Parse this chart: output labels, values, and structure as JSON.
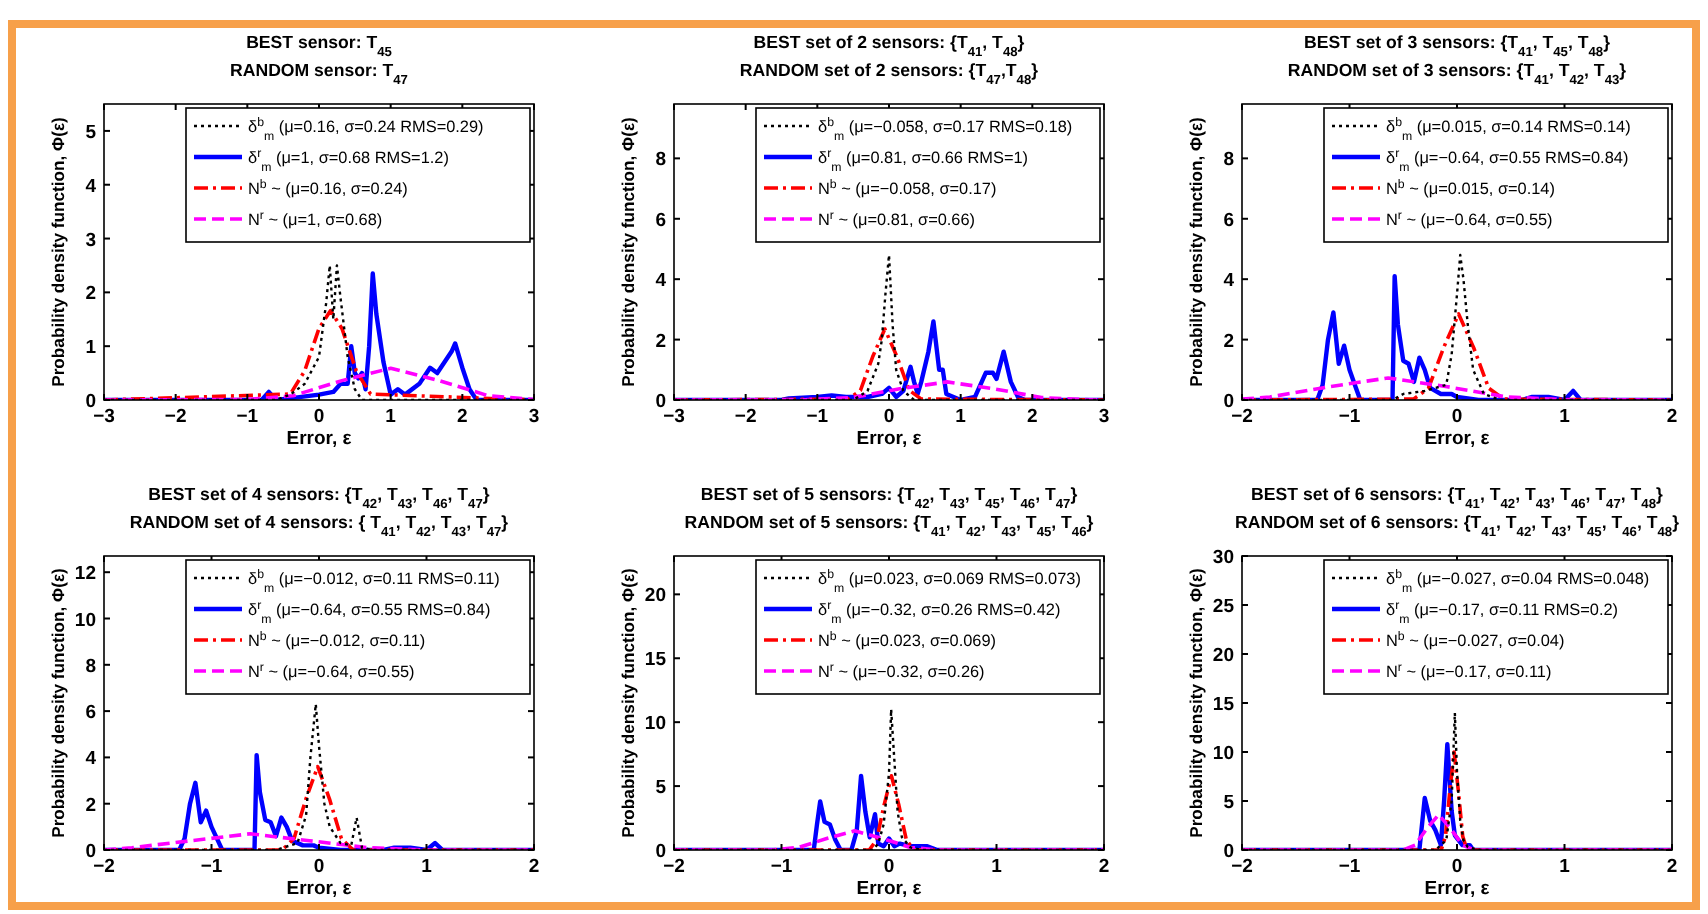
{
  "chart_data": [
    {
      "type": "line",
      "title": "BEST sensor: T$_{45}$",
      "subtitle": "RANDOM sensor: T$_{47}$",
      "xlabel": "Error, ε",
      "ylabel": "Probability density function, Φ(ε)",
      "xlim": [
        -3,
        3
      ],
      "xticks": [
        -3,
        -2,
        -1,
        0,
        1,
        2,
        3
      ],
      "ylim": [
        0,
        5.5
      ],
      "yticks": [
        0,
        1,
        2,
        3,
        4,
        5
      ],
      "legend": "top right",
      "series": [
        {
          "name": "δ$^{b}$$_{m}$ (μ=0.16, σ=0.24 RMS=0.29)",
          "color": "#000000",
          "line_style": "dotted",
          "x": [
            -3,
            -0.6,
            -0.4,
            -0.2,
            0,
            0.1,
            0.15,
            0.2,
            0.25,
            0.3,
            0.4,
            0.5,
            0.6,
            3
          ],
          "values": [
            0,
            0,
            0.1,
            0.3,
            0.8,
            1.8,
            2.5,
            1.5,
            2.5,
            1.9,
            0.8,
            0.2,
            0,
            0
          ]
        },
        {
          "name": "δ$^{r}$$_{m}$ (μ=1, σ=0.68 RMS=1.2)",
          "color": "#0000ff",
          "line_style": "solid",
          "x": [
            -3,
            -0.8,
            -0.7,
            -0.6,
            -0.3,
            0,
            0.2,
            0.3,
            0.4,
            0.45,
            0.5,
            0.55,
            0.6,
            0.65,
            0.7,
            0.75,
            0.8,
            0.9,
            1.0,
            1.1,
            1.2,
            1.4,
            1.55,
            1.65,
            1.75,
            1.85,
            1.9,
            2.0,
            2.1,
            2.2,
            3
          ],
          "values": [
            0,
            0,
            0.15,
            0,
            0.05,
            0.1,
            0.15,
            0.3,
            0.3,
            1.0,
            0.5,
            0.4,
            0.5,
            0.2,
            1.0,
            2.35,
            1.6,
            0.7,
            0.1,
            0.2,
            0.1,
            0.3,
            0.6,
            0.5,
            0.7,
            0.9,
            1.05,
            0.6,
            0.2,
            0,
            0
          ]
        },
        {
          "name": "N$^{b}$ ~ (μ=0.16, σ=0.24)",
          "color": "#ff0000",
          "line_style": "dashdot",
          "x": [
            -3,
            -0.4,
            -0.2,
            0,
            0.16,
            0.32,
            0.52,
            0.72,
            3
          ],
          "values": [
            0,
            0.11,
            0.54,
            1.33,
            1.66,
            1.33,
            0.54,
            0.11,
            0
          ]
        },
        {
          "name": "N$^{r}$ ~ (μ=1, σ=0.68)",
          "color": "#ff00ff",
          "line_style": "dashed",
          "x": [
            -3,
            -1,
            -0.36,
            0.32,
            1,
            1.68,
            2.36,
            3
          ],
          "values": [
            0,
            0.01,
            0.08,
            0.36,
            0.59,
            0.36,
            0.08,
            0.01
          ]
        }
      ]
    },
    {
      "type": "line",
      "title": "BEST set of 2 sensors: {T$_{41}$, T$_{48}$}",
      "subtitle": "RANDOM set of 2 sensors: {T$_{47}$,T$_{48}$}",
      "xlabel": "Error, ε",
      "ylabel": "Probability density function, Φ(ε)",
      "xlim": [
        -3,
        3
      ],
      "xticks": [
        -3,
        -2,
        -1,
        0,
        1,
        2,
        3
      ],
      "ylim": [
        0,
        9.8
      ],
      "yticks": [
        0,
        2,
        4,
        6,
        8
      ],
      "legend": "top right",
      "series": [
        {
          "name": "δ$^{b}$$_{m}$ (μ=−0.058, σ=0.17 RMS=0.18)",
          "color": "#000000",
          "line_style": "dotted",
          "x": [
            -3,
            -0.5,
            -0.3,
            -0.15,
            -0.1,
            -0.05,
            0,
            0.05,
            0.1,
            0.2,
            0.35,
            3
          ],
          "values": [
            0,
            0,
            0.3,
            1.2,
            2.0,
            3.5,
            4.8,
            2.5,
            1.0,
            0.3,
            0,
            0
          ]
        },
        {
          "name": "δ$^{r}$$_{m}$ (μ=0.81, σ=0.66 RMS=1)",
          "color": "#0000ff",
          "line_style": "solid",
          "x": [
            -3,
            -1.5,
            -1.4,
            -1,
            -0.8,
            -0.6,
            -0.3,
            -0.1,
            0,
            0.1,
            0.2,
            0.3,
            0.35,
            0.4,
            0.45,
            0.55,
            0.62,
            0.7,
            0.75,
            0.8,
            1.0,
            1.2,
            1.35,
            1.45,
            1.5,
            1.6,
            1.7,
            1.8,
            1.9,
            3
          ],
          "values": [
            0,
            0,
            0.05,
            0.1,
            0.15,
            0.1,
            0.1,
            0.2,
            0.4,
            0.1,
            0.3,
            1.1,
            0.6,
            0.2,
            0.6,
            1.6,
            2.6,
            1.0,
            1.0,
            0.2,
            0,
            0.1,
            0.9,
            0.9,
            0.7,
            1.6,
            0.6,
            0.1,
            0,
            0
          ]
        },
        {
          "name": "N$^{b}$ ~ (μ=−0.058, σ=0.17)",
          "color": "#ff0000",
          "line_style": "dashdot",
          "x": [
            -3,
            -0.568,
            -0.398,
            -0.228,
            -0.058,
            0.112,
            0.282,
            0.452,
            3
          ],
          "values": [
            0,
            0.03,
            0.32,
            1.43,
            2.35,
            1.43,
            0.32,
            0.03,
            0
          ]
        },
        {
          "name": "N$^{r}$ ~ (μ=0.81, σ=0.66)",
          "color": "#ff00ff",
          "line_style": "dashed",
          "x": [
            -3,
            -1.17,
            -0.51,
            0.15,
            0.81,
            1.47,
            2.13,
            2.79,
            3
          ],
          "values": [
            0,
            0.01,
            0.08,
            0.37,
            0.6,
            0.37,
            0.08,
            0.01,
            0
          ]
        }
      ]
    },
    {
      "type": "line",
      "title": "BEST set of 3 sensors: {T$_{41}$, T$_{45}$, T$_{48}$}",
      "subtitle": "RANDOM set of 3 sensors: {T$_{41}$, T$_{42}$, T$_{43}$}",
      "xlabel": "Error, ε",
      "ylabel": "Probability density function, Φ(ε)",
      "xlim": [
        -2,
        2
      ],
      "xticks": [
        -2,
        -1,
        0,
        1,
        2
      ],
      "ylim": [
        0,
        9.8
      ],
      "yticks": [
        0,
        2,
        4,
        6,
        8
      ],
      "legend": "top right",
      "series": [
        {
          "name": "δ$^{b}$$_{m}$ (μ=0.015, σ=0.14 RMS=0.14)",
          "color": "#000000",
          "line_style": "dotted",
          "x": [
            -2,
            -0.6,
            -0.5,
            -0.3,
            -0.1,
            -0.05,
            0,
            0.03,
            0.06,
            0.1,
            0.15,
            0.25,
            0.4,
            2
          ],
          "values": [
            0,
            0,
            0.2,
            0.3,
            0.5,
            1.5,
            3.5,
            4.8,
            4.0,
            2.5,
            1.0,
            0.2,
            0,
            0
          ]
        },
        {
          "name": "δ$^{r}$$_{m}$ (μ=−0.64, σ=0.55 RMS=0.84)",
          "color": "#0000ff",
          "line_style": "solid",
          "x": [
            -2,
            -1.3,
            -1.25,
            -1.2,
            -1.15,
            -1.1,
            -1.05,
            -1.0,
            -0.95,
            -0.9,
            -0.6,
            -0.58,
            -0.55,
            -0.5,
            -0.45,
            -0.4,
            -0.35,
            -0.3,
            -0.25,
            -0.15,
            -0.05,
            0,
            0.2,
            0.6,
            0.7,
            0.85,
            1.0,
            1.08,
            1.15,
            2
          ],
          "values": [
            0,
            0,
            0.5,
            2.0,
            2.9,
            1.2,
            1.8,
            1.0,
            0.5,
            0,
            0,
            4.1,
            2.5,
            1.3,
            1.2,
            0.6,
            1.4,
            1.0,
            0.4,
            0.2,
            0.2,
            0.1,
            0,
            0,
            0.1,
            0.1,
            0,
            0.3,
            0,
            0
          ]
        },
        {
          "name": "N$^{b}$ ~ (μ=0.015, σ=0.14)",
          "color": "#ff0000",
          "line_style": "dashdot",
          "x": [
            -2,
            -0.405,
            -0.265,
            -0.125,
            0.015,
            0.155,
            0.295,
            0.435,
            2
          ],
          "values": [
            0,
            0.03,
            0.39,
            1.73,
            2.85,
            1.73,
            0.39,
            0.03,
            0
          ]
        },
        {
          "name": "N$^{r}$ ~ (μ=−0.64, σ=0.55)",
          "color": "#ff00ff",
          "line_style": "dashed",
          "x": [
            -2,
            -1.74,
            -1.19,
            -0.64,
            -0.09,
            0.46,
            1.01,
            2
          ],
          "values": [
            0.03,
            0.1,
            0.44,
            0.73,
            0.44,
            0.1,
            0.01,
            0
          ]
        }
      ]
    },
    {
      "type": "line",
      "title": "BEST set of 4 sensors: {T$_{42}$, T$_{43}$, T$_{46}$, T$_{47}$}",
      "subtitle": "RANDOM set of 4 sensors: { T$_{41}$, T$_{42}$, T$_{43}$, T$_{47}$}",
      "xlabel": "Error, ε",
      "ylabel": "Probability density function, Φ(ε)",
      "xlim": [
        -2,
        2
      ],
      "xticks": [
        -2,
        -1,
        0,
        1,
        2
      ],
      "ylim": [
        0,
        12.7
      ],
      "yticks": [
        0,
        2,
        4,
        6,
        8,
        10,
        12
      ],
      "legend": "top right",
      "series": [
        {
          "name": "δ$^{b}$$_{m}$ (μ=−0.012, σ=0.11 RMS=0.11)",
          "color": "#000000",
          "line_style": "dotted",
          "x": [
            -2,
            -0.4,
            -0.2,
            -0.12,
            -0.08,
            -0.03,
            0,
            0.05,
            0.1,
            0.2,
            0.3,
            0.35,
            0.4,
            0.5,
            2
          ],
          "values": [
            0,
            0,
            0.3,
            1.5,
            4.0,
            6.3,
            4.5,
            2.0,
            1.0,
            0.3,
            0.2,
            1.4,
            0.1,
            0,
            0
          ]
        },
        {
          "name": "δ$^{r}$$_{m}$ (μ=−0.64, σ=0.55 RMS=0.84)",
          "color": "#0000ff",
          "line_style": "solid",
          "x": [
            -2,
            -1.3,
            -1.25,
            -1.2,
            -1.15,
            -1.1,
            -1.05,
            -1.0,
            -0.95,
            -0.9,
            -0.6,
            -0.58,
            -0.55,
            -0.5,
            -0.45,
            -0.4,
            -0.35,
            -0.3,
            -0.25,
            -0.15,
            -0.05,
            0,
            0.2,
            0.6,
            0.7,
            0.85,
            1.0,
            1.08,
            1.15,
            2
          ],
          "values": [
            0,
            0,
            0.5,
            2.0,
            2.9,
            1.2,
            1.7,
            1.0,
            0.5,
            0,
            0,
            4.1,
            2.5,
            1.3,
            1.2,
            0.6,
            1.4,
            1.0,
            0.4,
            0.2,
            0.2,
            0.1,
            0,
            0,
            0.1,
            0.1,
            0,
            0.3,
            0,
            0
          ]
        },
        {
          "name": "N$^{b}$ ~ (μ=−0.012, σ=0.11)",
          "color": "#ff0000",
          "line_style": "dashdot",
          "x": [
            -2,
            -0.342,
            -0.232,
            -0.122,
            -0.012,
            0.098,
            0.208,
            0.318,
            2
          ],
          "values": [
            0,
            0,
            0.5,
            2.2,
            3.6,
            2.2,
            0.5,
            0,
            0
          ]
        },
        {
          "name": "N$^{r}$ ~ (μ=−0.64, σ=0.55)",
          "color": "#ff00ff",
          "line_style": "dashed",
          "x": [
            -2,
            -1.74,
            -1.19,
            -0.64,
            -0.09,
            0.46,
            1.01,
            2
          ],
          "values": [
            0,
            0.1,
            0.4,
            0.7,
            0.4,
            0.1,
            0,
            0
          ]
        }
      ]
    },
    {
      "type": "line",
      "title": "BEST set of 5 sensors: {T$_{42}$, T$_{43}$, T$_{45}$, T$_{46}$, T$_{47}$}",
      "subtitle": "RANDOM set of 5 sensors: {T$_{41}$, T$_{42}$, T$_{43}$, T$_{45}$, T$_{46}$}",
      "xlabel": "Error, ε",
      "ylabel": "Probability density function, Φ(ε)",
      "xlim": [
        -2,
        2
      ],
      "xticks": [
        -2,
        -1,
        0,
        1,
        2
      ],
      "ylim": [
        0,
        23
      ],
      "yticks": [
        0,
        5,
        10,
        15,
        20
      ],
      "legend": "top right",
      "series": [
        {
          "name": "δ$^{b}$$_{m}$ (μ=0.023, σ=0.069 RMS=0.073)",
          "color": "#000000",
          "line_style": "dotted",
          "x": [
            -2,
            -0.15,
            -0.1,
            -0.05,
            0,
            0.02,
            0.05,
            0.08,
            0.12,
            0.2,
            0.3,
            2
          ],
          "values": [
            0,
            0,
            0.5,
            2,
            6,
            11,
            7,
            3,
            1,
            0.2,
            0,
            0
          ]
        },
        {
          "name": "δ$^{r}$$_{m}$ (μ=−0.32, σ=0.26 RMS=0.42)",
          "color": "#0000ff",
          "line_style": "solid",
          "x": [
            -2,
            -0.7,
            -0.67,
            -0.64,
            -0.6,
            -0.55,
            -0.5,
            -0.45,
            -0.35,
            -0.3,
            -0.26,
            -0.22,
            -0.18,
            -0.13,
            -0.1,
            -0.05,
            0,
            0.05,
            0.1,
            0.2,
            0.35,
            0.45,
            2
          ],
          "values": [
            0,
            0,
            2,
            3.8,
            2.2,
            2.0,
            0.8,
            0,
            0,
            1.5,
            5.8,
            3,
            1,
            2.8,
            0.5,
            0.3,
            0.9,
            0.3,
            0.5,
            0.3,
            0.3,
            0,
            0
          ]
        },
        {
          "name": "N$^{b}$ ~ (μ=0.023, σ=0.069)",
          "color": "#ff0000",
          "line_style": "dashdot",
          "x": [
            -2,
            -0.184,
            -0.115,
            -0.046,
            0.023,
            0.092,
            0.161,
            0.23,
            2
          ],
          "values": [
            0,
            0,
            0.8,
            3.5,
            5.8,
            3.5,
            0.8,
            0,
            0
          ]
        },
        {
          "name": "N$^{r}$ ~ (μ=−0.32, σ=0.26)",
          "color": "#ff00ff",
          "line_style": "dashed",
          "x": [
            -2,
            -1.1,
            -0.84,
            -0.58,
            -0.32,
            -0.06,
            0.2,
            0.46,
            2
          ],
          "values": [
            0,
            0,
            0.2,
            0.9,
            1.5,
            0.9,
            0.2,
            0,
            0
          ]
        }
      ]
    },
    {
      "type": "line",
      "title": "BEST set of 6 sensors: {T$_{41}$, T$_{42}$, T$_{43}$, T$_{46}$, T$_{47}$, T$_{48}$}",
      "subtitle": "RANDOM set of 6 sensors: {T$_{41}$, T$_{42}$, T$_{43}$, T$_{45}$, T$_{46}$, T$_{48}$}",
      "xlabel": "Error, ε",
      "ylabel": "Probability density function, Φ(ε)",
      "xlim": [
        -2,
        2
      ],
      "xticks": [
        -2,
        -1,
        0,
        1,
        2
      ],
      "ylim": [
        0,
        30
      ],
      "yticks": [
        0,
        5,
        10,
        15,
        20,
        25,
        30
      ],
      "legend": "top right",
      "series": [
        {
          "name": "δ$^{b}$$_{m}$ (μ=−0.027, σ=0.04 RMS=0.048)",
          "color": "#000000",
          "line_style": "dotted",
          "x": [
            -2,
            -0.2,
            -0.1,
            -0.05,
            -0.02,
            0,
            0.03,
            0.06,
            0.1,
            0.2,
            2
          ],
          "values": [
            0,
            0,
            1,
            5,
            14,
            8,
            3,
            1,
            0.3,
            0,
            0
          ]
        },
        {
          "name": "δ$^{r}$$_{m}$ (μ=−0.17, σ=0.11 RMS=0.2)",
          "color": "#0000ff",
          "line_style": "solid",
          "x": [
            -2,
            -0.35,
            -0.3,
            -0.25,
            -0.2,
            -0.15,
            -0.12,
            -0.09,
            -0.05,
            -0.02,
            0.05,
            0.12,
            0.15,
            2
          ],
          "values": [
            0,
            0,
            5.3,
            3,
            2,
            0.5,
            5,
            10.8,
            4,
            1.5,
            0.5,
            0.5,
            0,
            0
          ]
        },
        {
          "name": "N$^{b}$ ~ (μ=−0.027, σ=0.04)",
          "color": "#ff0000",
          "line_style": "dashdot",
          "x": [
            -2,
            -0.147,
            -0.107,
            -0.067,
            -0.027,
            0.013,
            0.053,
            0.093,
            2
          ],
          "values": [
            0,
            0,
            1.4,
            6,
            10,
            6,
            1.4,
            0,
            0
          ]
        },
        {
          "name": "N$^{r}$ ~ (μ=−0.17, σ=0.11)",
          "color": "#ff00ff",
          "line_style": "dashed",
          "x": [
            -2,
            -0.5,
            -0.39,
            -0.28,
            -0.17,
            -0.06,
            0.05,
            0.16,
            2
          ],
          "values": [
            0,
            0,
            0.5,
            2.2,
            3.6,
            2.2,
            0.5,
            0,
            0
          ]
        }
      ]
    }
  ]
}
